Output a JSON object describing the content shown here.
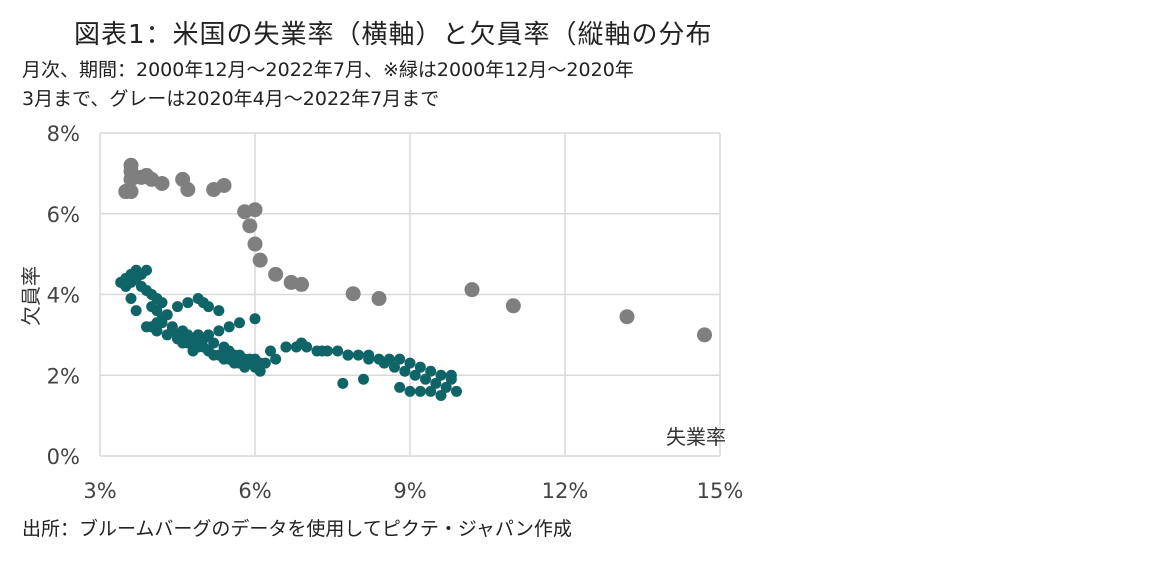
{
  "title": "図表1：米国の失業率（横軸）と欠員率（縦軸の分布",
  "subtitle_line1": "月次、期間：2000年12月～2022年7月、※緑は2000年12月～2020年",
  "subtitle_line2": "3月まで、グレーは2020年4月～2022年7月まで",
  "source": "出所：ブルームバーグのデータを使用してピクテ・ジャパン作成",
  "colors": {
    "green": "#0e6466",
    "gray": "#7f7f7f",
    "grid": "#d9d9d9"
  },
  "chart_data": {
    "type": "scatter",
    "xlabel": "失業率",
    "ylabel": "欠員率",
    "xlim": [
      3,
      15
    ],
    "ylim": [
      0,
      8
    ],
    "x_ticks": [
      "3%",
      "6%",
      "9%",
      "12%",
      "15%"
    ],
    "y_ticks": [
      "0%",
      "2%",
      "4%",
      "6%",
      "8%"
    ],
    "grid": true,
    "series": [
      {
        "name": "",
        "color": "green",
        "x": [
          3.4,
          3.5,
          3.6,
          3.7,
          3.5,
          3.6,
          3.8,
          3.9,
          3.7,
          3.8,
          3.9,
          4.0,
          4.1,
          4.2,
          4.0,
          4.1,
          4.3,
          4.2,
          4.0,
          4.1,
          4.4,
          4.5,
          4.6,
          4.7,
          4.6,
          4.8,
          4.9,
          5.0,
          5.1,
          4.9,
          5.0,
          4.8,
          5.2,
          5.3,
          5.4,
          5.5,
          5.6,
          5.7,
          5.4,
          5.5,
          5.8,
          6.0,
          6.1,
          6.0,
          5.9,
          5.3,
          5.1,
          5.0,
          4.9,
          4.7,
          4.5,
          4.3,
          4.2,
          4.1,
          4.4,
          4.6,
          4.7,
          4.9,
          5.0,
          5.2,
          5.4,
          5.5,
          5.6,
          5.7,
          5.8,
          5.9,
          6.0,
          6.1,
          6.2,
          6.4,
          6.6,
          6.8,
          7.0,
          7.2,
          7.4,
          7.6,
          7.8,
          8.0,
          8.2,
          8.4,
          8.6,
          8.8,
          9.0,
          9.2,
          9.4,
          9.6,
          9.8,
          9.5,
          9.3,
          9.1,
          8.9,
          8.7,
          8.5,
          8.2,
          7.8,
          7.3,
          6.9,
          6.6,
          6.3,
          6.0,
          5.7,
          5.5,
          5.3,
          5.1,
          4.9,
          4.7,
          4.5,
          4.3,
          4.1,
          3.9,
          3.7,
          3.6,
          9.7,
          9.9,
          9.8,
          9.4,
          9.6,
          9.2,
          9.0,
          8.8,
          8.1,
          7.7
        ],
        "y": [
          4.3,
          4.4,
          4.5,
          4.6,
          4.2,
          4.3,
          4.5,
          4.6,
          4.4,
          4.2,
          4.1,
          4.0,
          3.9,
          3.8,
          3.7,
          3.6,
          3.5,
          3.3,
          3.2,
          3.1,
          3.1,
          3.0,
          3.0,
          2.9,
          2.8,
          2.8,
          2.7,
          2.7,
          2.6,
          3.0,
          2.9,
          2.6,
          2.5,
          2.5,
          2.4,
          2.4,
          2.3,
          2.3,
          2.6,
          2.5,
          2.2,
          2.2,
          2.1,
          2.4,
          2.3,
          3.6,
          3.7,
          3.8,
          3.9,
          3.8,
          3.7,
          3.5,
          3.4,
          3.3,
          3.2,
          3.1,
          3.0,
          3.0,
          2.9,
          2.8,
          2.7,
          2.6,
          2.5,
          2.5,
          2.4,
          2.4,
          2.3,
          2.3,
          2.3,
          2.4,
          2.7,
          2.7,
          2.7,
          2.6,
          2.6,
          2.6,
          2.5,
          2.5,
          2.5,
          2.4,
          2.4,
          2.4,
          2.3,
          2.2,
          2.1,
          2.0,
          1.9,
          1.8,
          1.9,
          2.0,
          2.1,
          2.2,
          2.3,
          2.4,
          2.5,
          2.6,
          2.8,
          2.7,
          2.6,
          3.4,
          3.3,
          3.2,
          3.1,
          3.0,
          2.9,
          2.8,
          2.9,
          3.0,
          3.1,
          3.2,
          3.6,
          3.9,
          1.7,
          1.6,
          2.0,
          1.6,
          1.5,
          1.6,
          1.6,
          1.7,
          1.9,
          1.8
        ]
      },
      {
        "name": "",
        "color": "gray",
        "x": [
          14.7,
          13.2,
          11.0,
          10.2,
          8.4,
          7.9,
          6.9,
          6.7,
          6.4,
          6.1,
          6.0,
          5.9,
          5.8,
          6.0,
          5.4,
          5.2,
          4.7,
          4.6,
          4.2,
          4.0,
          3.9,
          3.8,
          3.6,
          3.6,
          3.5,
          3.6,
          3.6,
          3.5
        ],
        "y": [
          3.0,
          3.45,
          3.72,
          4.12,
          3.9,
          4.02,
          4.25,
          4.3,
          4.5,
          4.85,
          5.25,
          5.7,
          6.05,
          6.1,
          6.7,
          6.6,
          6.6,
          6.85,
          6.75,
          6.85,
          6.95,
          6.9,
          7.2,
          7.05,
          6.55,
          6.55,
          6.85,
          6.55
        ]
      }
    ]
  }
}
